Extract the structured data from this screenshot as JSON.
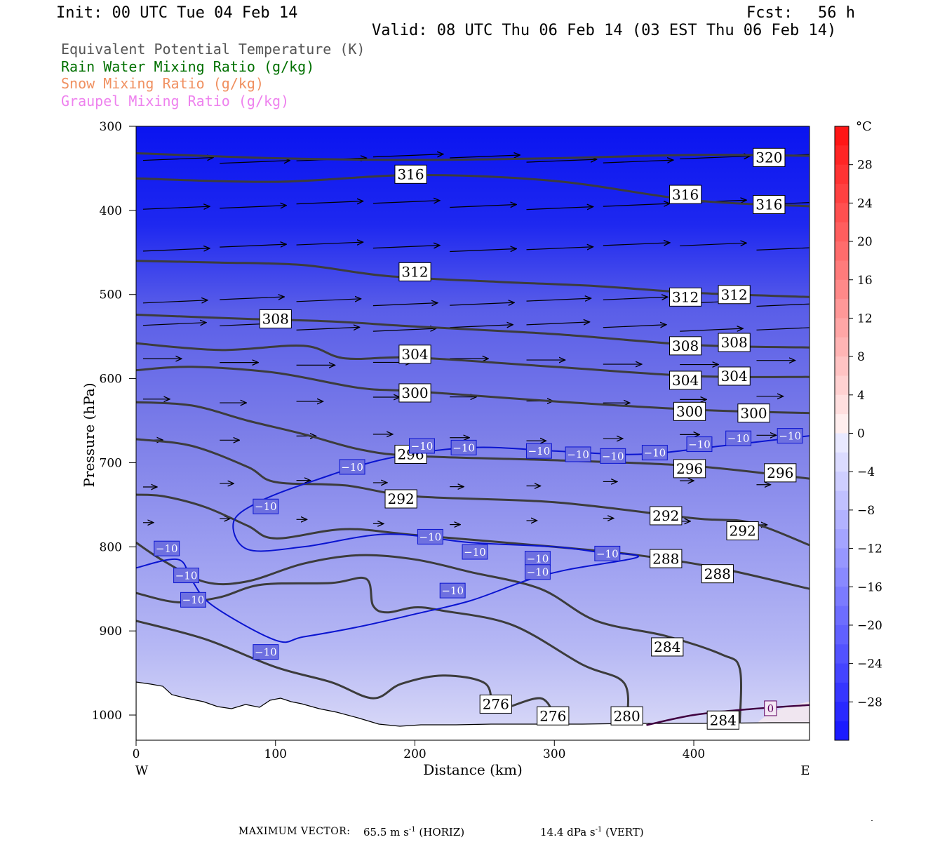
{
  "header": {
    "init": "Init: 00 UTC Tue 04 Feb 14",
    "fcst_label": "Fcst:",
    "fcst_value": "56 h",
    "valid": "Valid: 08 UTC Thu 06 Feb 14 (03 EST Thu 06 Feb 14)"
  },
  "variables": [
    {
      "name": "Equivalent Potential Temperature (K)",
      "color": "#555555"
    },
    {
      "name": "Rain Water Mixing Ratio (g/kg)",
      "color": "#007000"
    },
    {
      "name": "Snow Mixing Ratio (g/kg)",
      "color": "#f09060"
    },
    {
      "name": "Graupel Mixing Ratio (g/kg)",
      "color": "#ee82ee"
    }
  ],
  "chart_data": {
    "type": "heatmap",
    "xlabel": "Distance (km)",
    "ylabel": "Pressure (hPa)",
    "xlim": [
      0,
      483
    ],
    "ylim": [
      1030,
      300
    ],
    "x_ticks": [
      0,
      100,
      200,
      300,
      400
    ],
    "y_ticks": [
      300,
      400,
      500,
      600,
      700,
      800,
      900,
      1000
    ],
    "x_end_labels": {
      "left": "W",
      "right": "E"
    },
    "colorbar": {
      "unit": "°C",
      "labels": [
        "28",
        "24",
        "20",
        "16",
        "12",
        "8",
        "4",
        "0",
        "−4",
        "−8",
        "−12",
        "−16",
        "−20",
        "−24",
        "−28"
      ],
      "min": -32,
      "max": 32
    },
    "theta_e_contours": [
      {
        "level": 320,
        "labels": [
          [
            454,
            337
          ]
        ],
        "points": [
          [
            0,
            332
          ],
          [
            100,
            338
          ],
          [
            200,
            340
          ],
          [
            300,
            338
          ],
          [
            400,
            334
          ],
          [
            483,
            335
          ]
        ]
      },
      {
        "level": 316,
        "labels": [
          [
            197,
            357
          ],
          [
            394,
            381
          ],
          [
            454,
            393
          ]
        ],
        "points": [
          [
            0,
            362
          ],
          [
            100,
            366
          ],
          [
            200,
            358
          ],
          [
            300,
            365
          ],
          [
            400,
            388
          ],
          [
            483,
            395
          ]
        ]
      },
      {
        "level": 312,
        "labels": [
          [
            200,
            473
          ],
          [
            394,
            503
          ],
          [
            429,
            500
          ]
        ],
        "points": [
          [
            0,
            460
          ],
          [
            60,
            462
          ],
          [
            120,
            465
          ],
          [
            180,
            478
          ],
          [
            260,
            485
          ],
          [
            330,
            490
          ],
          [
            400,
            498
          ],
          [
            483,
            503
          ]
        ]
      },
      {
        "level": 308,
        "labels": [
          [
            100,
            529
          ],
          [
            394,
            561
          ],
          [
            429,
            557
          ]
        ],
        "points": [
          [
            0,
            524
          ],
          [
            80,
            529
          ],
          [
            140,
            532
          ],
          [
            200,
            538
          ],
          [
            300,
            547
          ],
          [
            400,
            560
          ],
          [
            483,
            563
          ]
        ]
      },
      {
        "level": 304,
        "labels": [
          [
            200,
            571
          ],
          [
            394,
            602
          ],
          [
            429,
            597
          ]
        ],
        "points": [
          [
            0,
            558
          ],
          [
            60,
            566
          ],
          [
            120,
            561
          ],
          [
            150,
            576
          ],
          [
            200,
            575
          ],
          [
            300,
            586
          ],
          [
            400,
            597
          ],
          [
            483,
            598
          ]
        ]
      },
      {
        "level": 300,
        "labels": [
          [
            200,
            617
          ],
          [
            397,
            639
          ],
          [
            443,
            641
          ]
        ],
        "points": [
          [
            0,
            590
          ],
          [
            40,
            586
          ],
          [
            100,
            593
          ],
          [
            160,
            611
          ],
          [
            200,
            615
          ],
          [
            300,
            627
          ],
          [
            400,
            637
          ],
          [
            483,
            641
          ]
        ]
      },
      {
        "level": 296,
        "labels": [
          [
            197,
            690
          ],
          [
            397,
            707
          ],
          [
            462,
            712
          ]
        ],
        "points": [
          [
            0,
            628
          ],
          [
            40,
            632
          ],
          [
            80,
            650
          ],
          [
            120,
            666
          ],
          [
            160,
            684
          ],
          [
            200,
            692
          ],
          [
            300,
            697
          ],
          [
            400,
            704
          ],
          [
            483,
            719
          ]
        ]
      },
      {
        "level": 292,
        "labels": [
          [
            190,
            743
          ],
          [
            380,
            763
          ],
          [
            435,
            781
          ]
        ],
        "points": [
          [
            0,
            672
          ],
          [
            40,
            680
          ],
          [
            80,
            705
          ],
          [
            100,
            723
          ],
          [
            150,
            727
          ],
          [
            200,
            740
          ],
          [
            300,
            747
          ],
          [
            400,
            766
          ],
          [
            440,
            771
          ],
          [
            483,
            798
          ]
        ]
      },
      {
        "level": 288,
        "labels": [
          [
            380,
            814
          ],
          [
            417,
            832
          ]
        ],
        "points": [
          [
            0,
            738
          ],
          [
            20,
            740
          ],
          [
            50,
            753
          ],
          [
            80,
            775
          ],
          [
            100,
            790
          ],
          [
            150,
            779
          ],
          [
            200,
            786
          ],
          [
            300,
            800
          ],
          [
            360,
            810
          ],
          [
            420,
            826
          ],
          [
            483,
            850
          ]
        ]
      },
      {
        "level": 284,
        "labels": [
          [
            381,
            919
          ],
          [
            421,
            1006
          ]
        ],
        "points": [
          [
            0,
            795
          ],
          [
            20,
            817
          ],
          [
            50,
            842
          ],
          [
            80,
            841
          ],
          [
            120,
            820
          ],
          [
            160,
            810
          ],
          [
            200,
            815
          ],
          [
            240,
            830
          ],
          [
            290,
            850
          ],
          [
            330,
            888
          ],
          [
            380,
            906
          ],
          [
            420,
            928
          ],
          [
            433,
            945
          ],
          [
            433,
            1010
          ]
        ]
      },
      {
        "level": 280,
        "labels": [
          [
            352,
            1001
          ]
        ],
        "points": [
          [
            0,
            855
          ],
          [
            30,
            866
          ],
          [
            60,
            860
          ],
          [
            90,
            845
          ],
          [
            140,
            843
          ],
          [
            165,
            838
          ],
          [
            170,
            870
          ],
          [
            180,
            878
          ],
          [
            200,
            872
          ],
          [
            220,
            876
          ],
          [
            270,
            893
          ],
          [
            320,
            940
          ],
          [
            350,
            962
          ],
          [
            352,
            1010
          ]
        ]
      },
      {
        "level": 276,
        "labels": [
          [
            258,
            987
          ],
          [
            299,
            1001
          ]
        ],
        "points": [
          [
            0,
            888
          ],
          [
            50,
            910
          ],
          [
            100,
            943
          ],
          [
            140,
            961
          ],
          [
            170,
            980
          ],
          [
            190,
            963
          ],
          [
            220,
            953
          ],
          [
            250,
            962
          ],
          [
            256,
            990
          ],
          [
            264,
            992
          ],
          [
            290,
            980
          ],
          [
            300,
            1000
          ]
        ]
      }
    ],
    "temperature_contours": [
      {
        "level": -10,
        "labels": [
          [
            22,
            802
          ],
          [
            36,
            834
          ],
          [
            41,
            863
          ],
          [
            93,
            925
          ],
          [
            93,
            752
          ],
          [
            155,
            705
          ],
          [
            205,
            680
          ],
          [
            235,
            682
          ],
          [
            289,
            686
          ],
          [
            317,
            690
          ],
          [
            342,
            692
          ],
          [
            372,
            688
          ],
          [
            404,
            678
          ],
          [
            432,
            671
          ],
          [
            469,
            668
          ],
          [
            211,
            788
          ],
          [
            243,
            806
          ],
          [
            288,
            814
          ],
          [
            288,
            830
          ],
          [
            227,
            852
          ],
          [
            338,
            808
          ]
        ],
        "points": [
          [
            0,
            825
          ],
          [
            30,
            815
          ],
          [
            40,
            840
          ],
          [
            55,
            870
          ],
          [
            100,
            911
          ],
          [
            120,
            907
          ],
          [
            160,
            895
          ],
          [
            200,
            880
          ],
          [
            240,
            864
          ],
          [
            280,
            840
          ],
          [
            310,
            827
          ],
          [
            360,
            812
          ],
          [
            330,
            806
          ],
          [
            300,
            800
          ],
          [
            240,
            795
          ],
          [
            180,
            785
          ],
          [
            120,
            800
          ],
          [
            80,
            803
          ],
          [
            70,
            770
          ],
          [
            90,
            745
          ],
          [
            130,
            720
          ],
          [
            180,
            695
          ],
          [
            240,
            682
          ],
          [
            300,
            686
          ],
          [
            360,
            690
          ],
          [
            420,
            680
          ],
          [
            483,
            668
          ]
        ]
      }
    ],
    "zero_isotherm": {
      "level": 0,
      "label_point": [
        455,
        992
      ],
      "points": [
        [
          366,
          1012
        ],
        [
          400,
          1000
        ],
        [
          440,
          993
        ],
        [
          483,
          988
        ]
      ]
    },
    "max_vector": {
      "label": "MAXIMUM VECTOR:",
      "horiz_value": "65.5 m s",
      "horiz_unit": "(HORIZ)",
      "vert_value": "14.4 dPa s",
      "vert_unit": "(VERT)",
      "exponent": "-1"
    }
  }
}
